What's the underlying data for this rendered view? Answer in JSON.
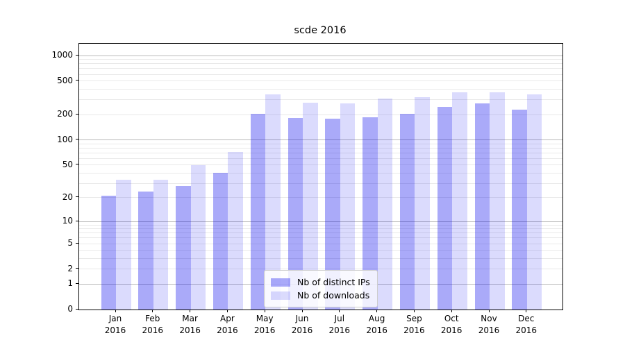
{
  "chart_data": {
    "type": "bar",
    "title": "scde 2016",
    "categories": [
      "Jan",
      "Feb",
      "Mar",
      "Apr",
      "May",
      "Jun",
      "Jul",
      "Aug",
      "Sep",
      "Oct",
      "Nov",
      "Dec"
    ],
    "category_year": "2016",
    "series": [
      {
        "name": "Nb of distinct IPs",
        "values": [
          21,
          24,
          28,
          40,
          203,
          184,
          178,
          185,
          203,
          247,
          270,
          230
        ]
      },
      {
        "name": "Nb of downloads",
        "values": [
          33,
          33,
          50,
          72,
          350,
          275,
          272,
          310,
          320,
          367,
          367,
          345
        ]
      }
    ],
    "xlabel": "",
    "ylabel": "",
    "yscale": "log1p",
    "ylim": [
      0,
      1380
    ],
    "yticks": [
      0,
      1,
      2,
      5,
      10,
      20,
      50,
      100,
      200,
      500,
      1000
    ],
    "major_gridlines": [
      1,
      10,
      100,
      1000
    ],
    "minor_gridlines": [
      2,
      3,
      4,
      5,
      6,
      7,
      8,
      9,
      20,
      30,
      40,
      50,
      60,
      70,
      80,
      90,
      200,
      300,
      400,
      500,
      600,
      700,
      800,
      900
    ],
    "grid": true,
    "legend_position": "lower center"
  },
  "colors": {
    "ips_bar": "rgba(0,0,238,0.335)",
    "downloads_bar": "rgba(0,0,238,0.14)",
    "grid_major": "#b8b8b8",
    "grid_minor": "#e9e9e9",
    "axis": "#000000"
  }
}
